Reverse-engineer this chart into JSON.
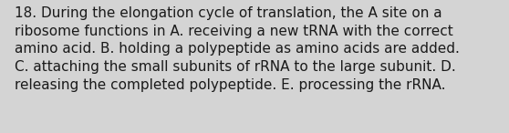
{
  "lines": [
    "18. During the elongation cycle of translation, the A site on a",
    "ribosome functions in A. receiving a new tRNA with the correct",
    "amino acid. B. holding a polypeptide as amino acids are added.",
    "C. attaching the small subunits of rRNA to the large subunit. D.",
    "releasing the completed polypeptide. E. processing the rRNA."
  ],
  "background_color": "#d4d4d4",
  "text_color": "#1a1a1a",
  "font_size": 11.0,
  "fig_width": 5.58,
  "fig_height": 1.46
}
